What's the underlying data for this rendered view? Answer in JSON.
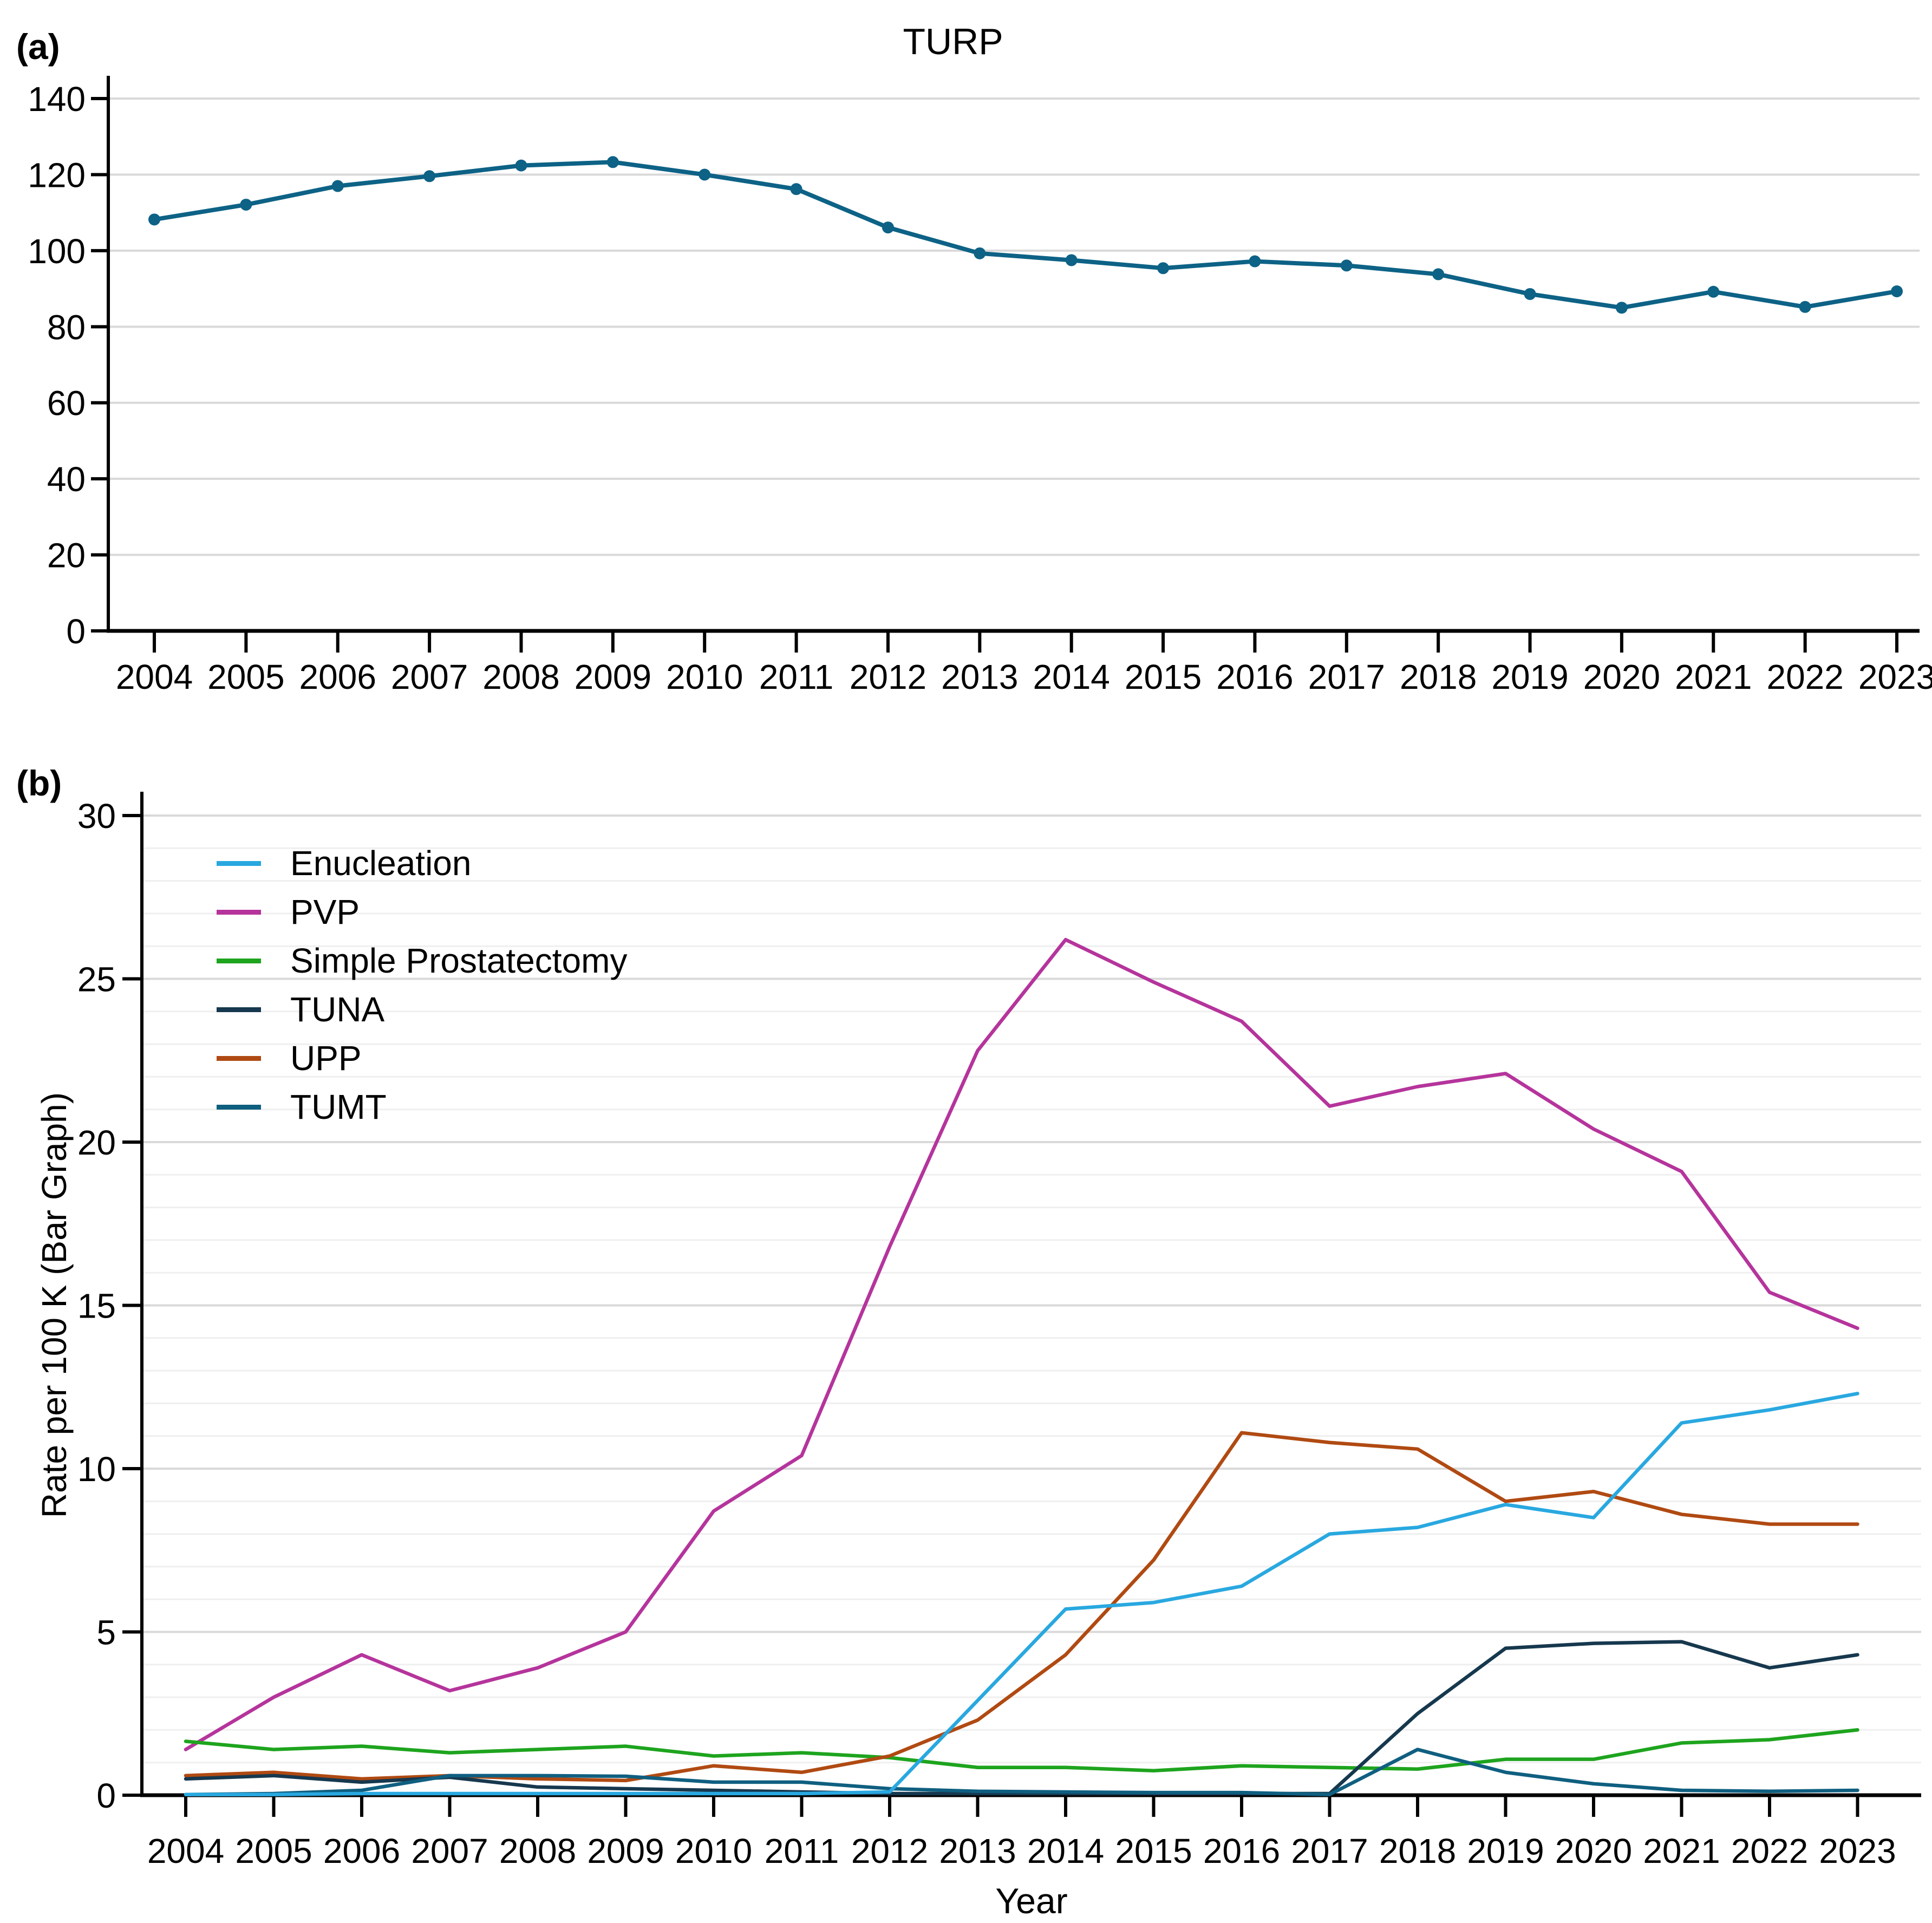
{
  "panel_a": {
    "tag": "(a)",
    "title": "TURP"
  },
  "panel_b": {
    "tag": "(b)",
    "ylabel": "Rate per 100 K (Bar Graph)",
    "xlabel": "Year"
  },
  "colors": {
    "axis": "#000000",
    "grid_major": "#d9d9d9",
    "grid_minor": "#efefef",
    "background": "#ffffff"
  },
  "chart_data": [
    {
      "type": "line",
      "panel": "a",
      "title": "TURP",
      "xlabel": "",
      "ylabel": "",
      "categories": [
        2004,
        2005,
        2006,
        2007,
        2008,
        2009,
        2010,
        2011,
        2012,
        2013,
        2014,
        2015,
        2016,
        2017,
        2018,
        2019,
        2020,
        2021,
        2022,
        2023
      ],
      "ylim": [
        0,
        140
      ],
      "yticks": [
        0,
        20,
        40,
        60,
        80,
        100,
        120,
        140
      ],
      "grid": "horizontal-major",
      "legend_position": "none",
      "series": [
        {
          "name": "TURP",
          "color": "#0d6286",
          "marker": "circle",
          "values": [
            108.2,
            112.1,
            117.0,
            119.6,
            122.4,
            123.3,
            120.0,
            116.2,
            106.1,
            99.3,
            97.5,
            95.4,
            97.2,
            96.1,
            93.8,
            88.6,
            85.0,
            89.2,
            85.2,
            89.3
          ]
        }
      ]
    },
    {
      "type": "line",
      "panel": "b",
      "title": "",
      "xlabel": "Year",
      "ylabel": "Rate per 100 K (Bar Graph)",
      "categories": [
        2004,
        2005,
        2006,
        2007,
        2008,
        2009,
        2010,
        2011,
        2012,
        2013,
        2014,
        2015,
        2016,
        2017,
        2018,
        2019,
        2020,
        2021,
        2022,
        2023
      ],
      "ylim": [
        0,
        30
      ],
      "yticks": [
        0,
        5,
        10,
        15,
        20,
        25,
        30
      ],
      "minor_grid_step": 1,
      "grid": "horizontal-major-and-minor",
      "legend_position": "top-left",
      "series": [
        {
          "name": "Enucleation",
          "color": "#29a8e0",
          "marker": "none",
          "values": [
            0.02,
            0.02,
            0.05,
            0.05,
            0.05,
            0.05,
            0.05,
            0.05,
            0.1,
            2.9,
            5.7,
            5.9,
            6.4,
            8.0,
            8.2,
            8.9,
            8.5,
            11.4,
            11.8,
            12.3
          ]
        },
        {
          "name": "PVP",
          "color": "#b5349c",
          "marker": "none",
          "values": [
            1.4,
            3.0,
            4.3,
            3.2,
            3.9,
            5.0,
            8.7,
            10.4,
            16.8,
            22.8,
            26.2,
            24.9,
            23.7,
            21.1,
            21.7,
            22.1,
            20.4,
            19.1,
            15.4,
            14.3
          ]
        },
        {
          "name": "Simple Prostatectomy",
          "color": "#1ea41e",
          "marker": "none",
          "values": [
            1.65,
            1.4,
            1.5,
            1.3,
            1.4,
            1.5,
            1.2,
            1.3,
            1.15,
            0.85,
            0.85,
            0.75,
            0.9,
            0.85,
            0.8,
            1.1,
            1.1,
            1.6,
            1.7,
            2.0
          ]
        },
        {
          "name": "TUNA",
          "color": "#16384e",
          "marker": "none",
          "values": [
            0.5,
            0.6,
            0.4,
            0.55,
            0.25,
            0.2,
            0.15,
            0.1,
            0.05,
            0.05,
            0.05,
            0.05,
            0.05,
            0.05,
            2.5,
            4.5,
            4.65,
            4.7,
            3.9,
            4.3
          ]
        },
        {
          "name": "UPP",
          "color": "#b04a12",
          "marker": "none",
          "values": [
            0.6,
            0.7,
            0.5,
            0.6,
            0.5,
            0.45,
            0.9,
            0.7,
            1.2,
            2.3,
            4.3,
            7.2,
            11.1,
            10.8,
            10.6,
            9.0,
            9.3,
            8.6,
            8.3,
            8.3
          ]
        },
        {
          "name": "TUMT",
          "color": "#0f5f80",
          "marker": "none",
          "values": [
            0.02,
            0.05,
            0.15,
            0.6,
            0.6,
            0.58,
            0.4,
            0.4,
            0.2,
            0.12,
            0.1,
            0.08,
            0.08,
            0.02,
            1.4,
            0.7,
            0.35,
            0.15,
            0.12,
            0.15
          ]
        }
      ]
    }
  ]
}
